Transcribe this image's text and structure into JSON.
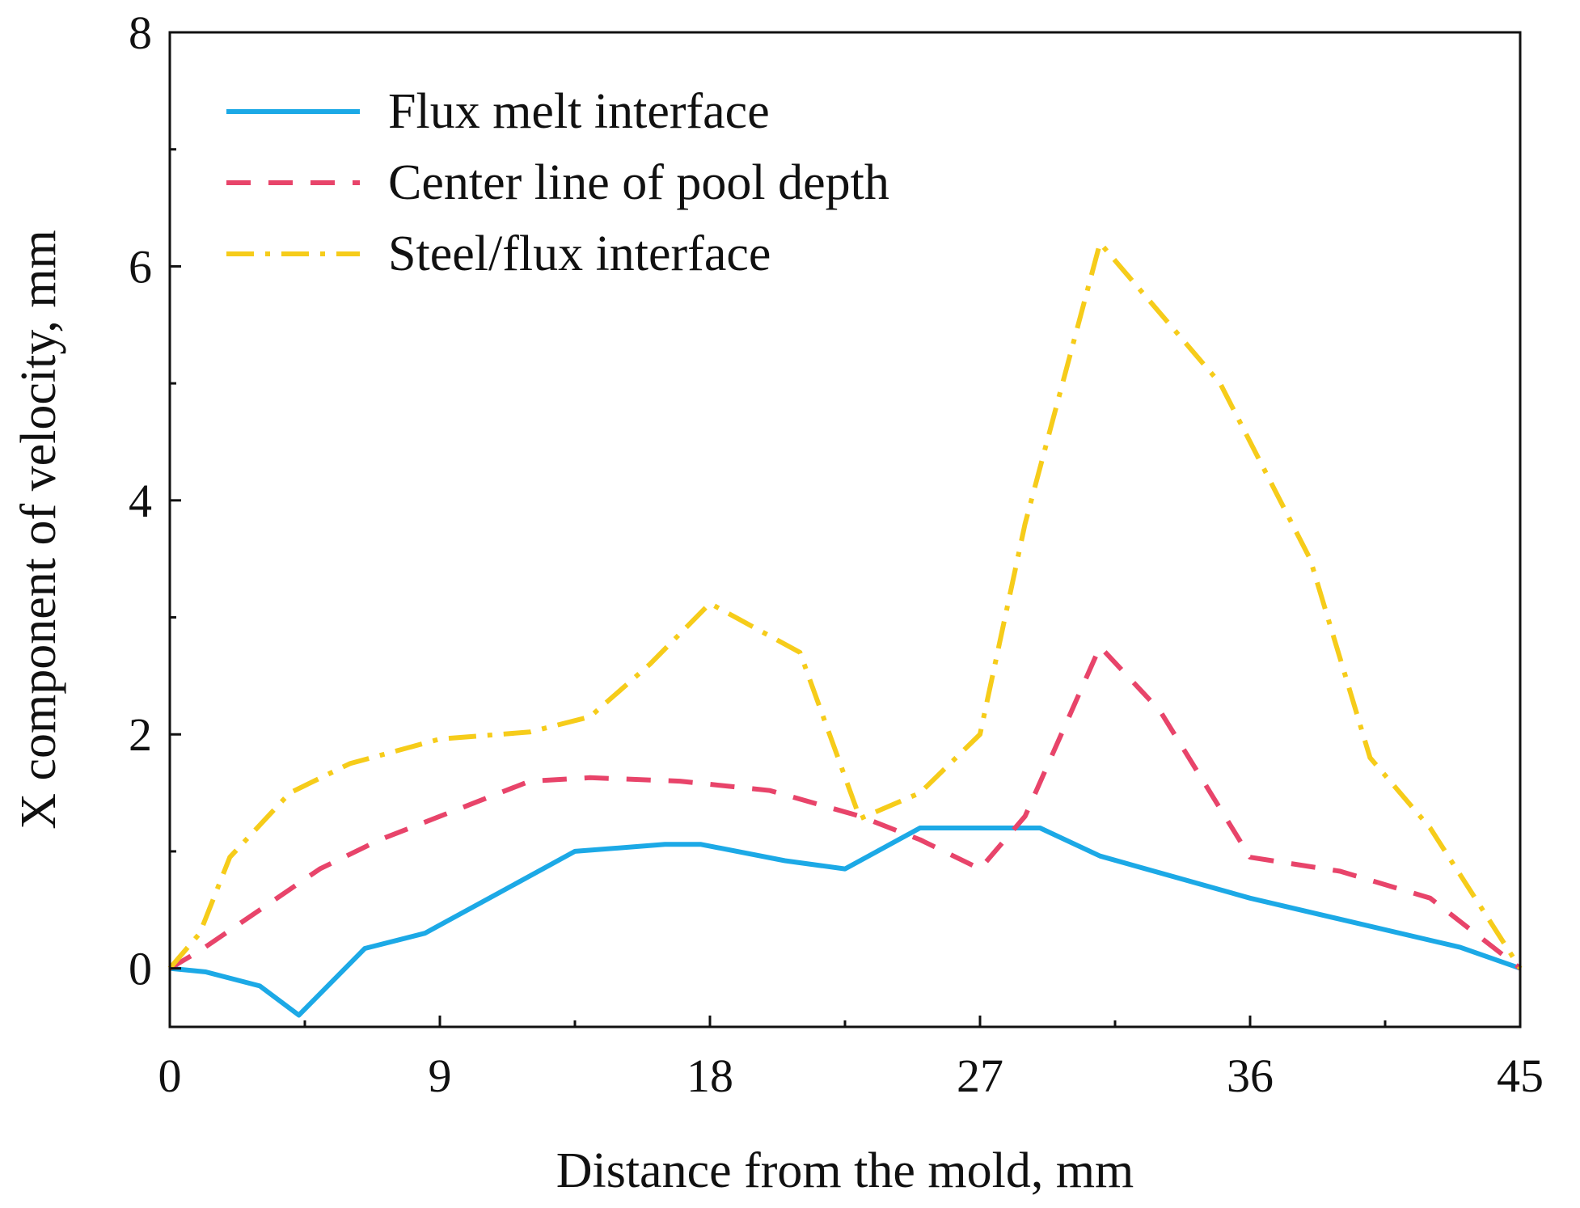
{
  "chart_data": {
    "type": "line",
    "title": "",
    "xlabel": "Distance from the mold, mm",
    "ylabel": "X component of velocity, mm",
    "xlim": [
      0,
      45
    ],
    "ylim": [
      -0.5,
      8
    ],
    "xticks": [
      0,
      9,
      18,
      27,
      36,
      45
    ],
    "yticks": [
      0,
      2,
      4,
      6,
      8
    ],
    "grid": false,
    "legend_position": "top-left",
    "series": [
      {
        "name": "Flux melt interface",
        "color": "#1ca9e6",
        "style": "solid",
        "x": [
          0,
          1.2,
          3,
          4.3,
          6.5,
          8.5,
          11,
          13.5,
          16.5,
          17.7,
          20.5,
          22.5,
          25,
          27,
          29,
          31,
          36,
          43,
          45
        ],
        "y": [
          0,
          -0.03,
          -0.15,
          -0.4,
          0.17,
          0.3,
          0.65,
          1.0,
          1.06,
          1.06,
          0.92,
          0.85,
          1.2,
          1.2,
          1.2,
          0.96,
          0.6,
          0.18,
          0
        ]
      },
      {
        "name": "Center line of pool depth",
        "color": "#e8446a",
        "style": "dashed",
        "x": [
          0,
          1,
          3,
          5,
          7,
          10,
          12,
          14,
          17,
          20,
          23,
          25,
          27,
          28.5,
          31,
          33,
          36,
          39,
          42,
          45
        ],
        "y": [
          0,
          0.15,
          0.5,
          0.85,
          1.1,
          1.4,
          1.6,
          1.63,
          1.6,
          1.52,
          1.3,
          1.1,
          0.85,
          1.3,
          2.75,
          2.2,
          0.95,
          0.83,
          0.6,
          0
        ]
      },
      {
        "name": "Steel/flux interface",
        "color": "#f6cc1a",
        "style": "dashdot",
        "x": [
          0,
          1,
          2,
          4,
          6,
          9,
          12,
          14,
          16,
          18,
          21,
          23,
          25,
          27,
          28.5,
          31,
          35,
          38,
          40,
          42,
          45
        ],
        "y": [
          0,
          0.3,
          0.95,
          1.5,
          1.75,
          1.96,
          2.02,
          2.15,
          2.6,
          3.12,
          2.7,
          1.28,
          1.5,
          2.0,
          3.8,
          6.2,
          5.0,
          3.5,
          1.8,
          1.2,
          0
        ]
      }
    ]
  }
}
